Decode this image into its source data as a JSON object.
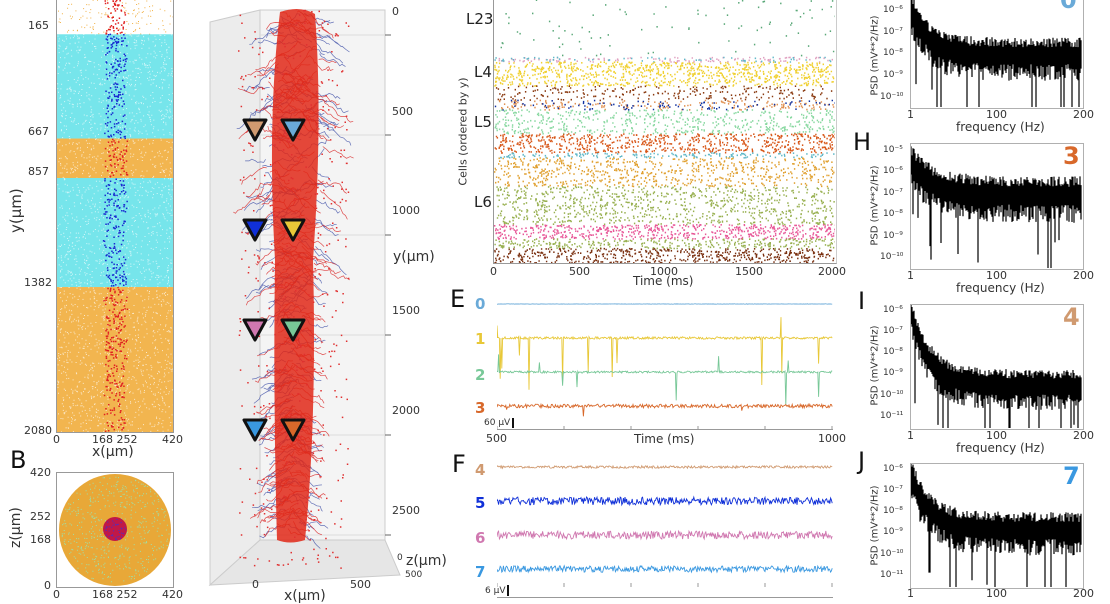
{
  "chart_data": [
    {
      "id": "A",
      "type": "scatter",
      "panel_label": "",
      "xlabel": "x(µm)",
      "ylabel": "y(µm)",
      "xticks": [
        "0",
        "168 252",
        "420"
      ],
      "yticks": [
        "165",
        "667",
        "857",
        "1382",
        "2080"
      ],
      "xlim": [
        0,
        420
      ],
      "ylim": [
        2080,
        0
      ],
      "layers": [
        {
          "from": 0,
          "to": 165,
          "color": "#f0a830",
          "density": "sparse"
        },
        {
          "from": 165,
          "to": 667,
          "color": "#5ee0e8"
        },
        {
          "from": 667,
          "to": 857,
          "color": "#f0a830"
        },
        {
          "from": 857,
          "to": 1382,
          "color": "#5ee0e8"
        },
        {
          "from": 1382,
          "to": 2080,
          "color": "#f0a830"
        }
      ],
      "core": {
        "x_from": 168,
        "x_to": 252,
        "colors": [
          "#1a2ad0",
          "#e02020"
        ]
      }
    },
    {
      "id": "B",
      "type": "scatter",
      "panel_label": "B",
      "xlabel": "",
      "ylabel": "z(µm)",
      "xticks": [
        "0",
        "168 252",
        "420"
      ],
      "yticks": [
        "420",
        "252",
        "168",
        "0"
      ],
      "xlim": [
        0,
        420
      ],
      "ylim": [
        0,
        420
      ],
      "disk_color": "#e8a838",
      "core_color": "#c01848"
    },
    {
      "id": "C",
      "type": "scatter",
      "subtype": "3d-morphology",
      "xlabel": "x(µm)",
      "ylabel": "y(µm)",
      "zlabel": "z(µm)",
      "xticks": [
        "0",
        "500"
      ],
      "yticks": [
        "0",
        "500",
        "1000",
        "1500",
        "2000",
        "2500"
      ],
      "zticks": [
        "0",
        "500"
      ],
      "electrodes": [
        {
          "id": 0,
          "color": "#6aaad8",
          "x": 1,
          "y": 500
        },
        {
          "id": 1,
          "color": "#e8c838",
          "x": 1,
          "y": 1000
        },
        {
          "id": 2,
          "color": "#78c898",
          "x": 1,
          "y": 1500
        },
        {
          "id": 3,
          "color": "#d8682a",
          "x": 1,
          "y": 2000
        },
        {
          "id": 4,
          "color": "#d09a70",
          "x": 0,
          "y": 500
        },
        {
          "id": 5,
          "color": "#1030d8",
          "x": 0,
          "y": 1000
        },
        {
          "id": 6,
          "color": "#d078b0",
          "x": 0,
          "y": 1500
        },
        {
          "id": 7,
          "color": "#3a98e0",
          "x": 0,
          "y": 2000
        }
      ]
    },
    {
      "id": "D",
      "type": "scatter",
      "subtype": "raster",
      "xlabel": "Time (ms)",
      "ylabel": "Cells (ordered by y)",
      "xticks": [
        "0",
        "500",
        "1000",
        "1500",
        "2000"
      ],
      "xlim": [
        0,
        2000
      ],
      "layer_labels": [
        "L23",
        "L4",
        "L5",
        "L6"
      ],
      "bands": [
        {
          "color": "#5aa878",
          "rate": 0.15,
          "rows": 8
        },
        {
          "color": "#e0a0c0",
          "rate": 0.6,
          "rows": 1,
          "mixed": true
        },
        {
          "color": "#f0d030",
          "rate": 0.9,
          "rows": 5
        },
        {
          "color": "#8a3a10",
          "rate": 0.4,
          "rows": 3
        },
        {
          "color": "#e09050",
          "rate": 0.5,
          "rows": 2,
          "mixed": true
        },
        {
          "color": "#88d8a0",
          "rate": 0.55,
          "rows": 5
        },
        {
          "color": "#d8581a",
          "rate": 0.9,
          "rows": 4
        },
        {
          "color": "#60b8c8",
          "rate": 0.8,
          "rows": 1
        },
        {
          "color": "#e0a030",
          "rate": 0.6,
          "rows": 6
        },
        {
          "color": "#98b050",
          "rate": 0.55,
          "rows": 8
        },
        {
          "color": "#e85898",
          "rate": 1.0,
          "rows": 3
        },
        {
          "color": "#98b050",
          "rate": 0.8,
          "rows": 2
        },
        {
          "color": "#7a3010",
          "rate": 0.9,
          "rows": 3
        }
      ]
    },
    {
      "id": "E",
      "type": "line",
      "panel_label": "E",
      "xlabel": "Time (ms)",
      "xticks": [
        "500",
        "1000"
      ],
      "xlim": [
        500,
        1000
      ],
      "scale_bar": "60 µV",
      "series": [
        {
          "name": "0",
          "color": "#6aaad8",
          "noise": 0.05,
          "spikes": 0.02,
          "spike_amp": 1.2
        },
        {
          "name": "1",
          "color": "#e8c838",
          "noise": 0.3,
          "spikes": 0.22,
          "spike_amp": 2.5
        },
        {
          "name": "2",
          "color": "#78c898",
          "noise": 0.25,
          "spikes": 0.12,
          "spike_amp": 1.6
        },
        {
          "name": "3",
          "color": "#d8682a",
          "noise": 0.45,
          "spikes": 0.05,
          "spike_amp": 0.6
        }
      ]
    },
    {
      "id": "F",
      "type": "line",
      "panel_label": "F",
      "xlabel": "",
      "xlim": [
        500,
        1000
      ],
      "scale_bar": "6 µV",
      "series": [
        {
          "name": "4",
          "color": "#d09a70",
          "noise": 0.3,
          "spikes": 0,
          "spike_amp": 0
        },
        {
          "name": "5",
          "color": "#1030d8",
          "noise": 1.0,
          "spikes": 0,
          "spike_amp": 0
        },
        {
          "name": "6",
          "color": "#d078b0",
          "noise": 1.0,
          "spikes": 0,
          "spike_amp": 0
        },
        {
          "name": "7",
          "color": "#3a98e0",
          "noise": 0.8,
          "spikes": 0,
          "spike_amp": 0
        }
      ]
    },
    {
      "id": "G",
      "type": "line",
      "subtype": "psd",
      "panel_label": "",
      "channel": "0",
      "channel_color": "#6aaad8",
      "xlabel": "frequency (Hz)",
      "ylabel": "PSD (mV**2/Hz)",
      "xticks": [
        "1",
        "100",
        "200"
      ],
      "yticks": [
        "10⁻⁶",
        "10⁻⁷",
        "10⁻⁸",
        "10⁻⁹",
        "10⁻¹⁰"
      ],
      "ylog_range": [
        -10.3,
        -5.8
      ],
      "start": -5.8,
      "floor": -7.8,
      "decay": 20,
      "spread": 0.7
    },
    {
      "id": "H",
      "type": "line",
      "subtype": "psd",
      "panel_label": "H",
      "channel": "3",
      "channel_color": "#d8682a",
      "xlabel": "frequency (Hz)",
      "ylabel": "PSD (mV**2/Hz)",
      "xticks": [
        "1",
        "100",
        "200"
      ],
      "yticks": [
        "10⁻⁵",
        "10⁻⁶",
        "10⁻⁷",
        "10⁻⁸",
        "10⁻⁹",
        "10⁻¹⁰"
      ],
      "ylog_range": [
        -10.3,
        -4.8
      ],
      "start": -5.3,
      "floor": -6.7,
      "decay": 25,
      "spread": 0.8
    },
    {
      "id": "I",
      "type": "line",
      "subtype": "psd",
      "panel_label": "I",
      "channel": "4",
      "channel_color": "#d09a70",
      "xlabel": "frequency (Hz)",
      "ylabel": "PSD (mV**2/Hz)",
      "xticks": [
        "1",
        "100",
        "200"
      ],
      "yticks": [
        "10⁻⁶",
        "10⁻⁷",
        "10⁻⁸",
        "10⁻⁹",
        "10⁻¹⁰",
        "10⁻¹¹"
      ],
      "ylog_range": [
        -11.3,
        -5.8
      ],
      "start": -5.9,
      "floor": -9.1,
      "decay": 22,
      "spread": 0.7
    },
    {
      "id": "J",
      "type": "line",
      "subtype": "psd",
      "panel_label": "J",
      "channel": "7",
      "channel_color": "#3a98e0",
      "xlabel": "",
      "ylabel": "PSD (mV**2/Hz)",
      "xticks": [
        "1",
        "100",
        "200"
      ],
      "yticks": [
        "10⁻⁶",
        "10⁻⁷",
        "10⁻⁸",
        "10⁻⁹",
        "10⁻¹⁰",
        "10⁻¹¹"
      ],
      "ylog_range": [
        -11.3,
        -5.8
      ],
      "start": -6.0,
      "floor": -8.4,
      "decay": 22,
      "spread": 0.75
    }
  ]
}
